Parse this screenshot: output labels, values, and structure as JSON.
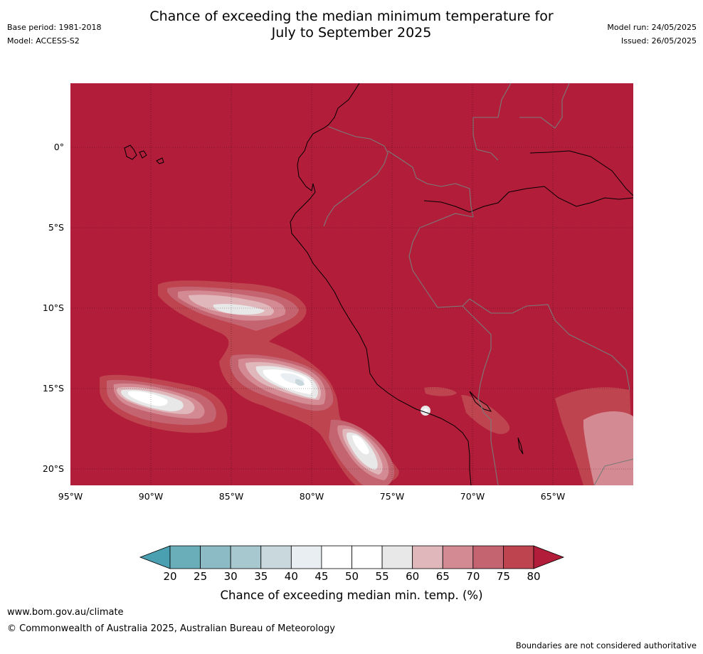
{
  "header": {
    "title_line1": "Chance of exceeding the median minimum temperature for",
    "title_line2": "July to September 2025",
    "base_period": "Base period: 1981-2018",
    "model": "Model: ACCESS-S2",
    "model_run": "Model run: 24/05/2025",
    "issued": "Issued: 26/05/2025"
  },
  "map": {
    "lat_labels": [
      "0°",
      "5°S",
      "10°S",
      "15°S",
      "20°S"
    ],
    "lon_labels": [
      "95°W",
      "90°W",
      "85°W",
      "80°W",
      "75°W",
      "70°W",
      "65°W"
    ],
    "extent": {
      "lon_min": -95,
      "lon_max": -60.1,
      "lat_min": -21,
      "lat_max": 4
    },
    "background_class_color": "#b21d3a"
  },
  "colorbar": {
    "title": "Chance of exceeding median min. temp. (%)",
    "ticks": [
      "20",
      "25",
      "30",
      "35",
      "40",
      "45",
      "50",
      "55",
      "60",
      "65",
      "70",
      "75",
      "80"
    ],
    "colors": [
      "#4aa0b0",
      "#6aaeba",
      "#8cbac5",
      "#a8c8cf",
      "#c8d8dd",
      "#e8eef1",
      "#ffffff",
      "#ffffff",
      "#e8e8e8",
      "#e0b8bc",
      "#d48a93",
      "#c46470",
      "#be4450",
      "#b21d3a"
    ]
  },
  "footer": {
    "url": "www.bom.gov.au/climate",
    "copyright": "© Commonwealth of Australia 2025, Australian Bureau of Meteorology",
    "note": "Boundaries are not considered authoritative"
  }
}
